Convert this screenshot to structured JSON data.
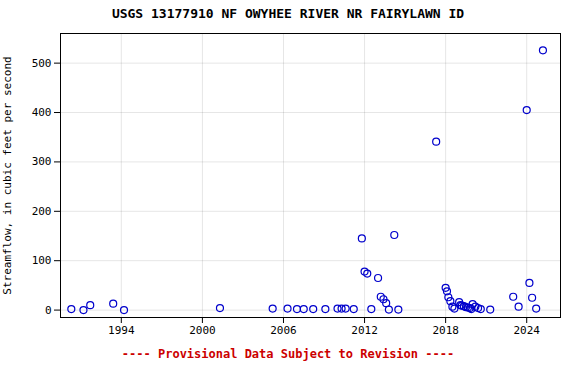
{
  "chart_data": {
    "type": "scatter",
    "title": "USGS 13177910 NF OWYHEE RIVER NR FAIRYLAWN ID",
    "ylabel": "Streamflow, in cubic feet per second",
    "x": [
      1990.3,
      1991.2,
      1991.7,
      1993.4,
      1994.2,
      2001.3,
      2005.2,
      2006.3,
      2007.0,
      2007.5,
      2008.2,
      2009.1,
      2010.0,
      2010.3,
      2010.6,
      2011.2,
      2011.8,
      2012.0,
      2012.2,
      2012.5,
      2013.0,
      2013.2,
      2013.4,
      2013.6,
      2013.8,
      2014.2,
      2014.5,
      2017.3,
      2018.0,
      2018.1,
      2018.2,
      2018.35,
      2018.5,
      2018.65,
      2019.0,
      2019.1,
      2019.2,
      2019.35,
      2019.5,
      2019.65,
      2019.8,
      2019.9,
      2020.0,
      2020.2,
      2020.4,
      2020.6,
      2021.3,
      2023.0,
      2023.4,
      2024.0,
      2024.2,
      2024.4,
      2024.7,
      2025.2
    ],
    "values": [
      2,
      0,
      10,
      13,
      0,
      4,
      3,
      3,
      2,
      2,
      2,
      2,
      3,
      3,
      3,
      2,
      145,
      78,
      74,
      2,
      65,
      27,
      22,
      14,
      1,
      152,
      1,
      341,
      45,
      38,
      26,
      18,
      7,
      3,
      16,
      10,
      9,
      8,
      6,
      5,
      4,
      2,
      12,
      7,
      4,
      2,
      1,
      27,
      7,
      405,
      55,
      25,
      3,
      526
    ],
    "color": "#0000CC",
    "marker": "circle",
    "xlim": [
      1989.5,
      2026.5
    ],
    "ylim": [
      -15,
      560
    ],
    "xticks": [
      1994,
      2000,
      2006,
      2012,
      2018,
      2024
    ],
    "yticks": [
      0,
      100,
      200,
      300,
      400,
      500
    ],
    "grid": true,
    "annotations": [
      {
        "text": "---- Provisional Data Subject to Revision ----",
        "color": "#CC0000"
      }
    ]
  }
}
